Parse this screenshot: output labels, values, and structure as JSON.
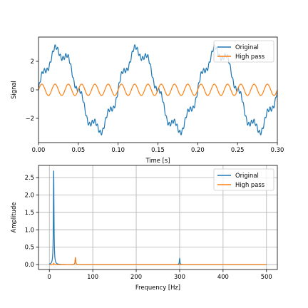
{
  "chart_data": [
    {
      "type": "line",
      "xlabel": "Time [s]",
      "ylabel": "Signal",
      "xlim": [
        0.0,
        0.3
      ],
      "ylim": [
        -3.7,
        3.7
      ],
      "xticks": [
        0.0,
        0.05,
        0.1,
        0.15,
        0.2,
        0.25,
        0.3
      ],
      "xtick_labels": [
        "0.00",
        "0.05",
        "0.10",
        "0.15",
        "0.20",
        "0.25",
        "0.30"
      ],
      "yticks": [
        -2,
        0,
        2
      ],
      "ytick_labels": [
        "−2",
        "0",
        "2"
      ],
      "grid": false,
      "legend": "top-right",
      "series": [
        {
          "name": "Original",
          "color": "#1f77b4",
          "components": [
            {
              "freq_hz": 10,
              "amplitude": 2.7
            },
            {
              "freq_hz": 60,
              "amplitude": 0.4
            },
            {
              "freq_hz": 300,
              "amplitude": 0.15
            }
          ]
        },
        {
          "name": "High pass",
          "color": "#ff7f0e",
          "components": [
            {
              "freq_hz": 60,
              "amplitude": 0.4
            }
          ]
        }
      ]
    },
    {
      "type": "line",
      "xlabel": "Frequency [Hz]",
      "ylabel": "Amplitude",
      "xlim": [
        -25,
        525
      ],
      "ylim": [
        -0.14,
        2.85
      ],
      "xticks": [
        0,
        100,
        200,
        300,
        400,
        500
      ],
      "xtick_labels": [
        "0",
        "100",
        "200",
        "300",
        "400",
        "500"
      ],
      "yticks": [
        0.0,
        0.5,
        1.0,
        1.5,
        2.0,
        2.5
      ],
      "ytick_labels": [
        "0.0",
        "0.5",
        "1.0",
        "1.5",
        "2.0",
        "2.5"
      ],
      "grid": true,
      "legend": "top-right",
      "freq_range": [
        0,
        500
      ],
      "series": [
        {
          "name": "Original",
          "color": "#1f77b4",
          "peaks": [
            {
              "freq_hz": 10,
              "amplitude": 2.7
            },
            {
              "freq_hz": 60,
              "amplitude": 0.2
            },
            {
              "freq_hz": 300,
              "amplitude": 0.18
            }
          ]
        },
        {
          "name": "High pass",
          "color": "#ff7f0e",
          "peaks": [
            {
              "freq_hz": 10,
              "amplitude": 0.04
            },
            {
              "freq_hz": 60,
              "amplitude": 0.2
            }
          ]
        }
      ]
    }
  ]
}
